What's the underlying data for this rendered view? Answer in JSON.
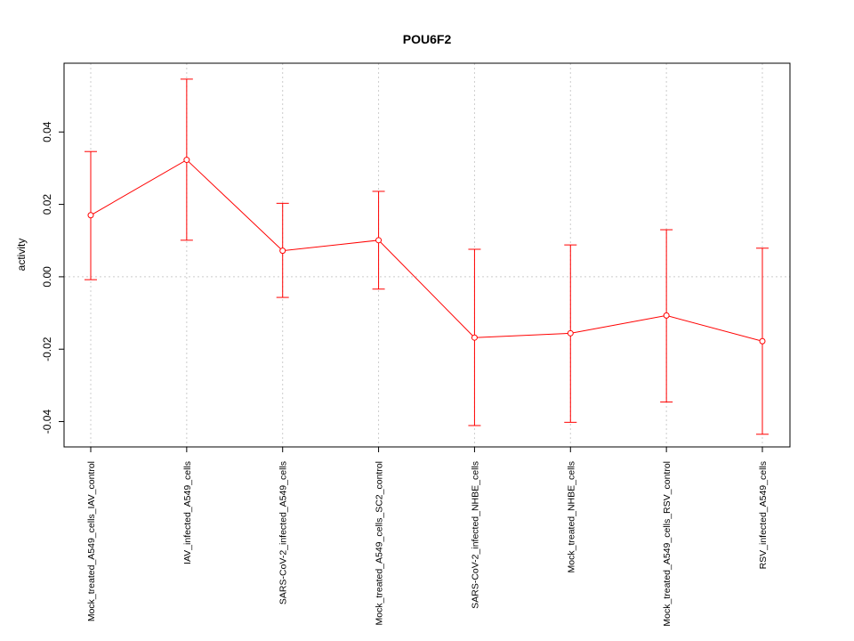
{
  "chart_data": {
    "type": "line",
    "title": "POU6F2",
    "ylabel": "activity",
    "xlabel": "",
    "ylim": [
      -0.047,
      0.059
    ],
    "yticks": [
      -0.04,
      -0.02,
      0.0,
      0.02,
      0.04
    ],
    "ytick_labels": [
      "-0.04",
      "-0.02",
      "0.00",
      "0.02",
      "0.04"
    ],
    "grid": true,
    "colors": {
      "series": "#ff0000",
      "grid": "#cccccc",
      "axis": "#000000"
    },
    "categories": [
      "Mock_treated_A549_cells_IAV_control",
      "IAV_infected_A549_cells",
      "SARS-CoV-2_infected_A549_cells",
      "Mock_treated_A549_cells_SC2_control",
      "SARS-CoV-2_infected_NHBE_cells",
      "Mock_treated_NHBE_cells",
      "Mock_treated_A549_cells_RSV_control",
      "RSV_infected_A549_cells"
    ],
    "series": [
      {
        "values": [
          0.017,
          0.0323,
          0.0072,
          0.0101,
          -0.0168,
          -0.0156,
          -0.0107,
          -0.0178
        ],
        "upper": [
          0.0346,
          0.0546,
          0.0203,
          0.0236,
          0.0076,
          0.0088,
          0.013,
          0.0079
        ],
        "lower": [
          -0.0008,
          0.0101,
          -0.0057,
          -0.0034,
          -0.0411,
          -0.0402,
          -0.0346,
          -0.0435
        ]
      }
    ]
  }
}
